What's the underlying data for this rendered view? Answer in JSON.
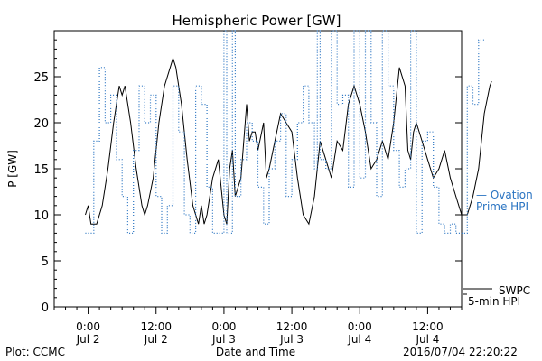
{
  "chart_data": {
    "type": "line",
    "title": "Hemispheric Power [GW]",
    "ylabel": "P [GW]",
    "xlabel": "Date and Time",
    "ylim": [
      0,
      30
    ],
    "y_ticks": [
      0,
      5,
      10,
      15,
      20,
      25
    ],
    "xlim_hours": [
      -6,
      66
    ],
    "x_ticks": [
      {
        "hour": 0,
        "time": "0:00",
        "date": "Jul 2"
      },
      {
        "hour": 12,
        "time": "12:00",
        "date": "Jul 2"
      },
      {
        "hour": 24,
        "time": "0:00",
        "date": "Jul 3"
      },
      {
        "hour": 36,
        "time": "12:00",
        "date": "Jul 3"
      },
      {
        "hour": 48,
        "time": "0:00",
        "date": "Jul 4"
      },
      {
        "hour": 60,
        "time": "12:00",
        "date": "Jul 4"
      }
    ],
    "grid": false,
    "series": [
      {
        "name_line1": "SWPC",
        "name_line2": "5-min HPI",
        "style": "solid",
        "color": "#000000",
        "points": [
          [
            -0.5,
            10
          ],
          [
            0,
            11
          ],
          [
            0.5,
            9
          ],
          [
            1.5,
            9
          ],
          [
            2.5,
            11
          ],
          [
            3.5,
            15
          ],
          [
            4.5,
            20
          ],
          [
            5.5,
            24
          ],
          [
            6,
            23
          ],
          [
            6.5,
            24
          ],
          [
            7.5,
            20
          ],
          [
            8.5,
            15
          ],
          [
            9.5,
            11
          ],
          [
            10,
            10
          ],
          [
            10.5,
            11
          ],
          [
            11.5,
            14
          ],
          [
            12.5,
            20
          ],
          [
            13.5,
            24
          ],
          [
            14.5,
            26
          ],
          [
            15,
            27
          ],
          [
            15.5,
            26
          ],
          [
            16.5,
            22
          ],
          [
            17.5,
            16
          ],
          [
            18.5,
            11
          ],
          [
            19.5,
            9
          ],
          [
            20,
            11
          ],
          [
            20.5,
            9
          ],
          [
            21,
            10
          ],
          [
            22,
            14
          ],
          [
            23,
            16
          ],
          [
            24,
            10
          ],
          [
            24.5,
            9
          ],
          [
            25,
            15
          ],
          [
            25.5,
            17
          ],
          [
            26,
            12
          ],
          [
            27,
            14
          ],
          [
            28,
            22
          ],
          [
            28.5,
            18
          ],
          [
            29,
            19
          ],
          [
            29.5,
            19
          ],
          [
            30,
            17
          ],
          [
            31,
            20
          ],
          [
            31.5,
            14
          ],
          [
            32,
            15
          ],
          [
            33,
            18
          ],
          [
            34,
            21
          ],
          [
            35,
            20
          ],
          [
            36,
            19
          ],
          [
            37,
            14
          ],
          [
            38,
            10
          ],
          [
            39,
            9
          ],
          [
            40,
            12
          ],
          [
            41,
            18
          ],
          [
            42,
            16
          ],
          [
            43,
            14
          ],
          [
            44,
            18
          ],
          [
            45,
            17
          ],
          [
            46,
            22
          ],
          [
            47,
            24
          ],
          [
            48,
            22
          ],
          [
            49,
            19
          ],
          [
            50,
            15
          ],
          [
            51,
            16
          ],
          [
            52,
            18
          ],
          [
            53,
            16
          ],
          [
            54,
            20
          ],
          [
            55,
            26
          ],
          [
            56,
            24
          ],
          [
            56.5,
            17
          ],
          [
            57,
            16
          ],
          [
            57.5,
            19
          ],
          [
            58,
            20
          ],
          [
            59,
            18
          ],
          [
            60,
            16
          ],
          [
            61,
            14
          ],
          [
            62,
            15
          ],
          [
            63,
            17
          ],
          [
            64,
            14
          ],
          [
            65,
            12
          ],
          [
            66,
            10
          ],
          [
            66.5,
            10
          ],
          [
            67,
            10
          ],
          [
            68,
            12
          ],
          [
            69,
            15
          ],
          [
            70,
            21
          ],
          [
            71,
            24
          ],
          [
            71.3,
            24.5
          ]
        ]
      },
      {
        "name_line1": "— Ovation",
        "name_line2": "Prime HPI",
        "style": "dotted",
        "color": "#2a74c2",
        "points": [
          [
            -0.5,
            8
          ],
          [
            1,
            8
          ],
          [
            1,
            18
          ],
          [
            2,
            18
          ],
          [
            2,
            26
          ],
          [
            3,
            26
          ],
          [
            3,
            20
          ],
          [
            4,
            20
          ],
          [
            4,
            23
          ],
          [
            5,
            23
          ],
          [
            5,
            16
          ],
          [
            6,
            16
          ],
          [
            6,
            12
          ],
          [
            7,
            12
          ],
          [
            7,
            8
          ],
          [
            8,
            8
          ],
          [
            8,
            17
          ],
          [
            9,
            17
          ],
          [
            9,
            24
          ],
          [
            10,
            24
          ],
          [
            10,
            20
          ],
          [
            11,
            20
          ],
          [
            11,
            23
          ],
          [
            12,
            23
          ],
          [
            12,
            12
          ],
          [
            13,
            12
          ],
          [
            13,
            8
          ],
          [
            14,
            8
          ],
          [
            14,
            11
          ],
          [
            15,
            11
          ],
          [
            15,
            24
          ],
          [
            16,
            24
          ],
          [
            16,
            19
          ],
          [
            17,
            19
          ],
          [
            17,
            10
          ],
          [
            18,
            10
          ],
          [
            18,
            8
          ],
          [
            19,
            8
          ],
          [
            19,
            24
          ],
          [
            20,
            24
          ],
          [
            20,
            22
          ],
          [
            21,
            22
          ],
          [
            21,
            13
          ],
          [
            22,
            13
          ],
          [
            22,
            8
          ],
          [
            23,
            8
          ],
          [
            23,
            8
          ],
          [
            24,
            8
          ],
          [
            24,
            30
          ],
          [
            24.5,
            30
          ],
          [
            24.5,
            8
          ],
          [
            25.5,
            8
          ],
          [
            25.5,
            30
          ],
          [
            26,
            30
          ],
          [
            26,
            12
          ],
          [
            27,
            12
          ],
          [
            27,
            16
          ],
          [
            28,
            16
          ],
          [
            28,
            20
          ],
          [
            29,
            20
          ],
          [
            29,
            18
          ],
          [
            30,
            18
          ],
          [
            30,
            13
          ],
          [
            31,
            13
          ],
          [
            31,
            9
          ],
          [
            32,
            9
          ],
          [
            32,
            15
          ],
          [
            33,
            15
          ],
          [
            33,
            18
          ],
          [
            34,
            18
          ],
          [
            34,
            21
          ],
          [
            35,
            21
          ],
          [
            35,
            12
          ],
          [
            36,
            12
          ],
          [
            36,
            16
          ],
          [
            37,
            16
          ],
          [
            37,
            20
          ],
          [
            38,
            20
          ],
          [
            38,
            24
          ],
          [
            39,
            24
          ],
          [
            39,
            20
          ],
          [
            40,
            20
          ],
          [
            40,
            15
          ],
          [
            40.5,
            15
          ],
          [
            40.5,
            30
          ],
          [
            41,
            30
          ],
          [
            41,
            16
          ],
          [
            42,
            16
          ],
          [
            42,
            15
          ],
          [
            43,
            15
          ],
          [
            43,
            30
          ],
          [
            44,
            30
          ],
          [
            44,
            22
          ],
          [
            45,
            22
          ],
          [
            45,
            23
          ],
          [
            46,
            23
          ],
          [
            46,
            13
          ],
          [
            47,
            13
          ],
          [
            47,
            30
          ],
          [
            48,
            30
          ],
          [
            48,
            14
          ],
          [
            49,
            14
          ],
          [
            49,
            30
          ],
          [
            50,
            30
          ],
          [
            50,
            20
          ],
          [
            51,
            20
          ],
          [
            51,
            12
          ],
          [
            52,
            12
          ],
          [
            52,
            30
          ],
          [
            53,
            30
          ],
          [
            53,
            24
          ],
          [
            54,
            24
          ],
          [
            54,
            17
          ],
          [
            55,
            17
          ],
          [
            55,
            13
          ],
          [
            56,
            13
          ],
          [
            56,
            15
          ],
          [
            57,
            15
          ],
          [
            57,
            30
          ],
          [
            58,
            30
          ],
          [
            58,
            8
          ],
          [
            59,
            8
          ],
          [
            59,
            18
          ],
          [
            60,
            18
          ],
          [
            60,
            19
          ],
          [
            61,
            19
          ],
          [
            61,
            13
          ],
          [
            62,
            13
          ],
          [
            62,
            9
          ],
          [
            63,
            9
          ],
          [
            63,
            8
          ],
          [
            64,
            8
          ],
          [
            64,
            9
          ],
          [
            65,
            9
          ],
          [
            65,
            8
          ],
          [
            66,
            8
          ],
          [
            66,
            8
          ],
          [
            67,
            8
          ],
          [
            67,
            24
          ],
          [
            68,
            24
          ],
          [
            68,
            22
          ],
          [
            69,
            22
          ],
          [
            69,
            29
          ],
          [
            70,
            29
          ],
          [
            70,
            29
          ]
        ]
      }
    ]
  },
  "footer": {
    "left": "Plot: CCMC",
    "right": "2016/07/04 22:20:22"
  }
}
